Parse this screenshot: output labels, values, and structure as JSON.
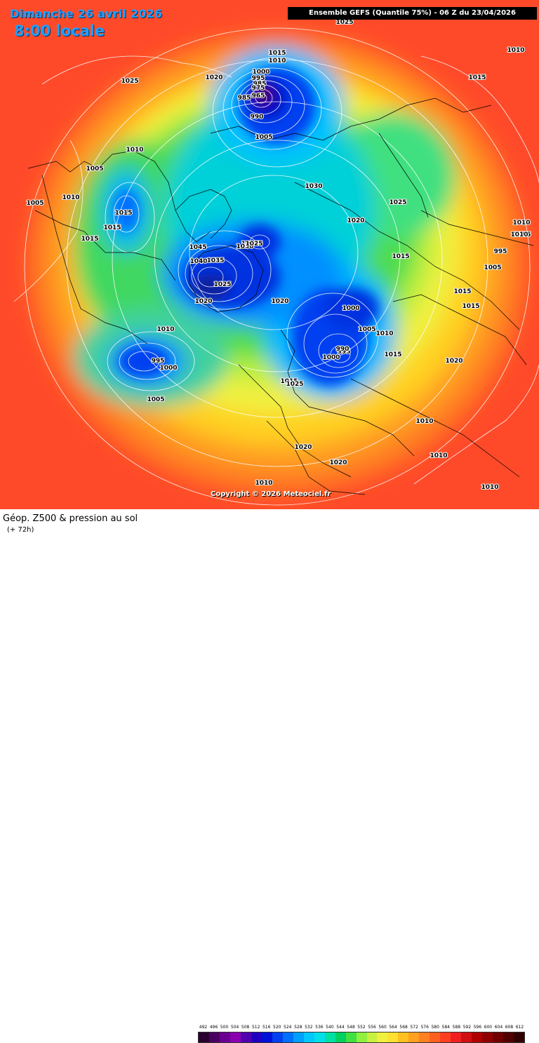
{
  "header": {
    "date": "Dimanche 26 avril 2026",
    "time": "8:00 locale",
    "run_info": "Ensemble GEFS  (Quantile 75%) - 06 Z du 23/04/2026"
  },
  "copyright": "Copyright © 2026 Meteociel.fr",
  "footer": {
    "title": "Géop. Z500 & pression au sol",
    "subtitle": "(+ 72h)"
  },
  "scale": {
    "values": [
      "492",
      "496",
      "500",
      "504",
      "508",
      "512",
      "516",
      "520",
      "524",
      "528",
      "532",
      "536",
      "540",
      "544",
      "548",
      "552",
      "556",
      "560",
      "564",
      "568",
      "572",
      "576",
      "580",
      "584",
      "588",
      "592",
      "596",
      "600",
      "604",
      "608",
      "612"
    ],
    "colors": [
      "#2a0030",
      "#4a0060",
      "#6a0090",
      "#8a00b0",
      "#5000b0",
      "#2000c0",
      "#0010d8",
      "#0040f0",
      "#0070ff",
      "#00a0ff",
      "#00c8ff",
      "#00e0e8",
      "#00e0a0",
      "#00d060",
      "#40e040",
      "#90f040",
      "#c8f040",
      "#f0f040",
      "#ffe030",
      "#ffc020",
      "#ffa020",
      "#ff8020",
      "#ff6020",
      "#ff4020",
      "#f02020",
      "#d01010",
      "#b00000",
      "#900000",
      "#700000",
      "#500000",
      "#300000"
    ]
  },
  "isobar_labels": [
    {
      "text": "1025"
    },
    {
      "text": "1010"
    },
    {
      "text": "1015"
    },
    {
      "text": "1010"
    },
    {
      "text": "1000"
    },
    {
      "text": "995"
    },
    {
      "text": "985"
    },
    {
      "text": "975"
    },
    {
      "text": "965"
    },
    {
      "text": "990"
    },
    {
      "text": "1005"
    },
    {
      "text": "1020"
    },
    {
      "text": "1025"
    },
    {
      "text": "1015"
    },
    {
      "text": "1010"
    },
    {
      "text": "1005"
    },
    {
      "text": "1010"
    },
    {
      "text": "1005"
    },
    {
      "text": "1015"
    },
    {
      "text": "1015"
    },
    {
      "text": "1015"
    },
    {
      "text": "1030"
    },
    {
      "text": "1025"
    },
    {
      "text": "1020"
    },
    {
      "text": "1025"
    },
    {
      "text": "1010"
    },
    {
      "text": "1005"
    },
    {
      "text": "1015"
    },
    {
      "text": "995"
    },
    {
      "text": "1005"
    },
    {
      "text": "1015"
    },
    {
      "text": "1015"
    },
    {
      "text": "1045"
    },
    {
      "text": "1030"
    },
    {
      "text": "1025"
    },
    {
      "text": "1040"
    },
    {
      "text": "1035"
    },
    {
      "text": "1025"
    },
    {
      "text": "1020"
    },
    {
      "text": "1020"
    },
    {
      "text": "1000"
    },
    {
      "text": "1005"
    },
    {
      "text": "1010"
    },
    {
      "text": "1015"
    },
    {
      "text": "1010"
    },
    {
      "text": "995"
    },
    {
      "text": "1000"
    },
    {
      "text": "990"
    },
    {
      "text": "1000"
    },
    {
      "text": "995"
    },
    {
      "text": "1015"
    },
    {
      "text": "1020"
    },
    {
      "text": "1025"
    },
    {
      "text": "1005"
    },
    {
      "text": "1010"
    },
    {
      "text": "1010"
    },
    {
      "text": "1020"
    },
    {
      "text": "1020"
    },
    {
      "text": "1010"
    },
    {
      "text": "1010"
    },
    {
      "text": "1010"
    },
    {
      "text": "985"
    }
  ]
}
